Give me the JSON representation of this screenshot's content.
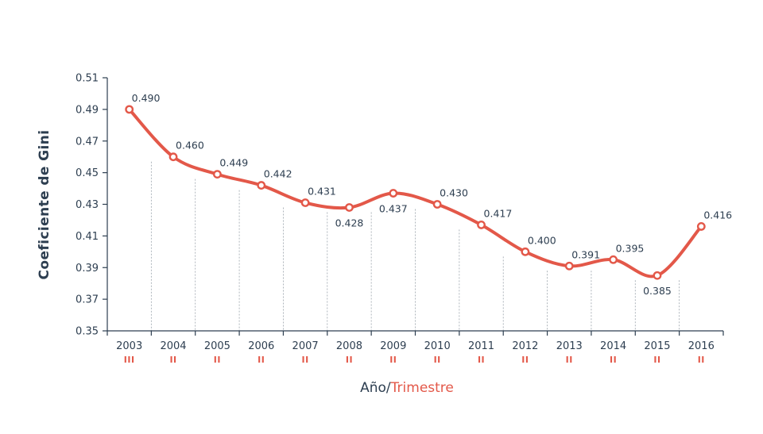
{
  "chart_data": {
    "type": "line",
    "categories": [
      "2003",
      "2004",
      "2005",
      "2006",
      "2007",
      "2008",
      "2009",
      "2010",
      "2011",
      "2012",
      "2013",
      "2014",
      "2015",
      "2016"
    ],
    "trimestres": [
      "III",
      "II",
      "II",
      "II",
      "II",
      "II",
      "II",
      "II",
      "II",
      "II",
      "II",
      "II",
      "II",
      "II"
    ],
    "values": [
      0.49,
      0.46,
      0.449,
      0.442,
      0.431,
      0.428,
      0.437,
      0.43,
      0.417,
      0.4,
      0.391,
      0.395,
      0.385,
      0.416
    ],
    "value_labels": [
      "0.490",
      "0.460",
      "0.449",
      "0.442",
      "0.431",
      "0.428",
      "0.437",
      "0.430",
      "0.417",
      "0.400",
      "0.391",
      "0.395",
      "0.385",
      "0.416"
    ],
    "yticks": [
      "0.35",
      "0.37",
      "0.39",
      "0.41",
      "0.43",
      "0.45",
      "0.47",
      "0.49",
      "0.51"
    ],
    "ylim": [
      0.35,
      0.51
    ],
    "ylabel": "Coeficiente de Gini",
    "xlabel_main": "Año/",
    "xlabel_accent": "Trimestre",
    "colors": {
      "line": "#e35849",
      "text": "#2d3e50",
      "axis": "#2d3e50",
      "accent": "#e35849"
    },
    "grid": "vertical dotted dividers between categories"
  }
}
